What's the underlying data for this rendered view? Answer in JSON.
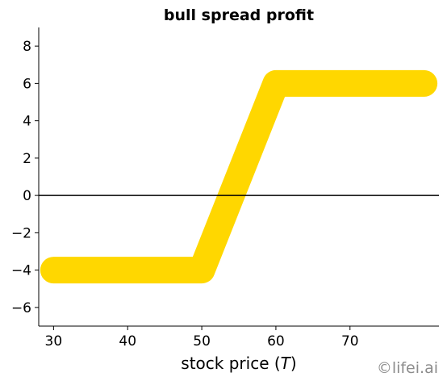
{
  "chart_data": {
    "type": "line",
    "title": "bull spread profit",
    "xlabel_main": "stock price (",
    "xlabel_var": "T",
    "xlabel_close": ")",
    "ylabel": "",
    "xlim": [
      28,
      82
    ],
    "ylim": [
      -7,
      9
    ],
    "xticks": [
      30,
      40,
      50,
      60,
      70
    ],
    "yticks": [
      -6,
      -4,
      -2,
      0,
      2,
      4,
      6,
      8
    ],
    "ytick_labels": [
      "−6",
      "−4",
      "−2",
      "0",
      "2",
      "4",
      "6",
      "8"
    ],
    "grid": false,
    "series": [
      {
        "color": "#ffd700",
        "x": [
          30,
          50,
          60,
          80
        ],
        "y": [
          -4,
          -4,
          6,
          6
        ]
      }
    ],
    "reference_line": {
      "y": 0,
      "color": "#000000"
    }
  },
  "watermark": "©lifei.ai"
}
